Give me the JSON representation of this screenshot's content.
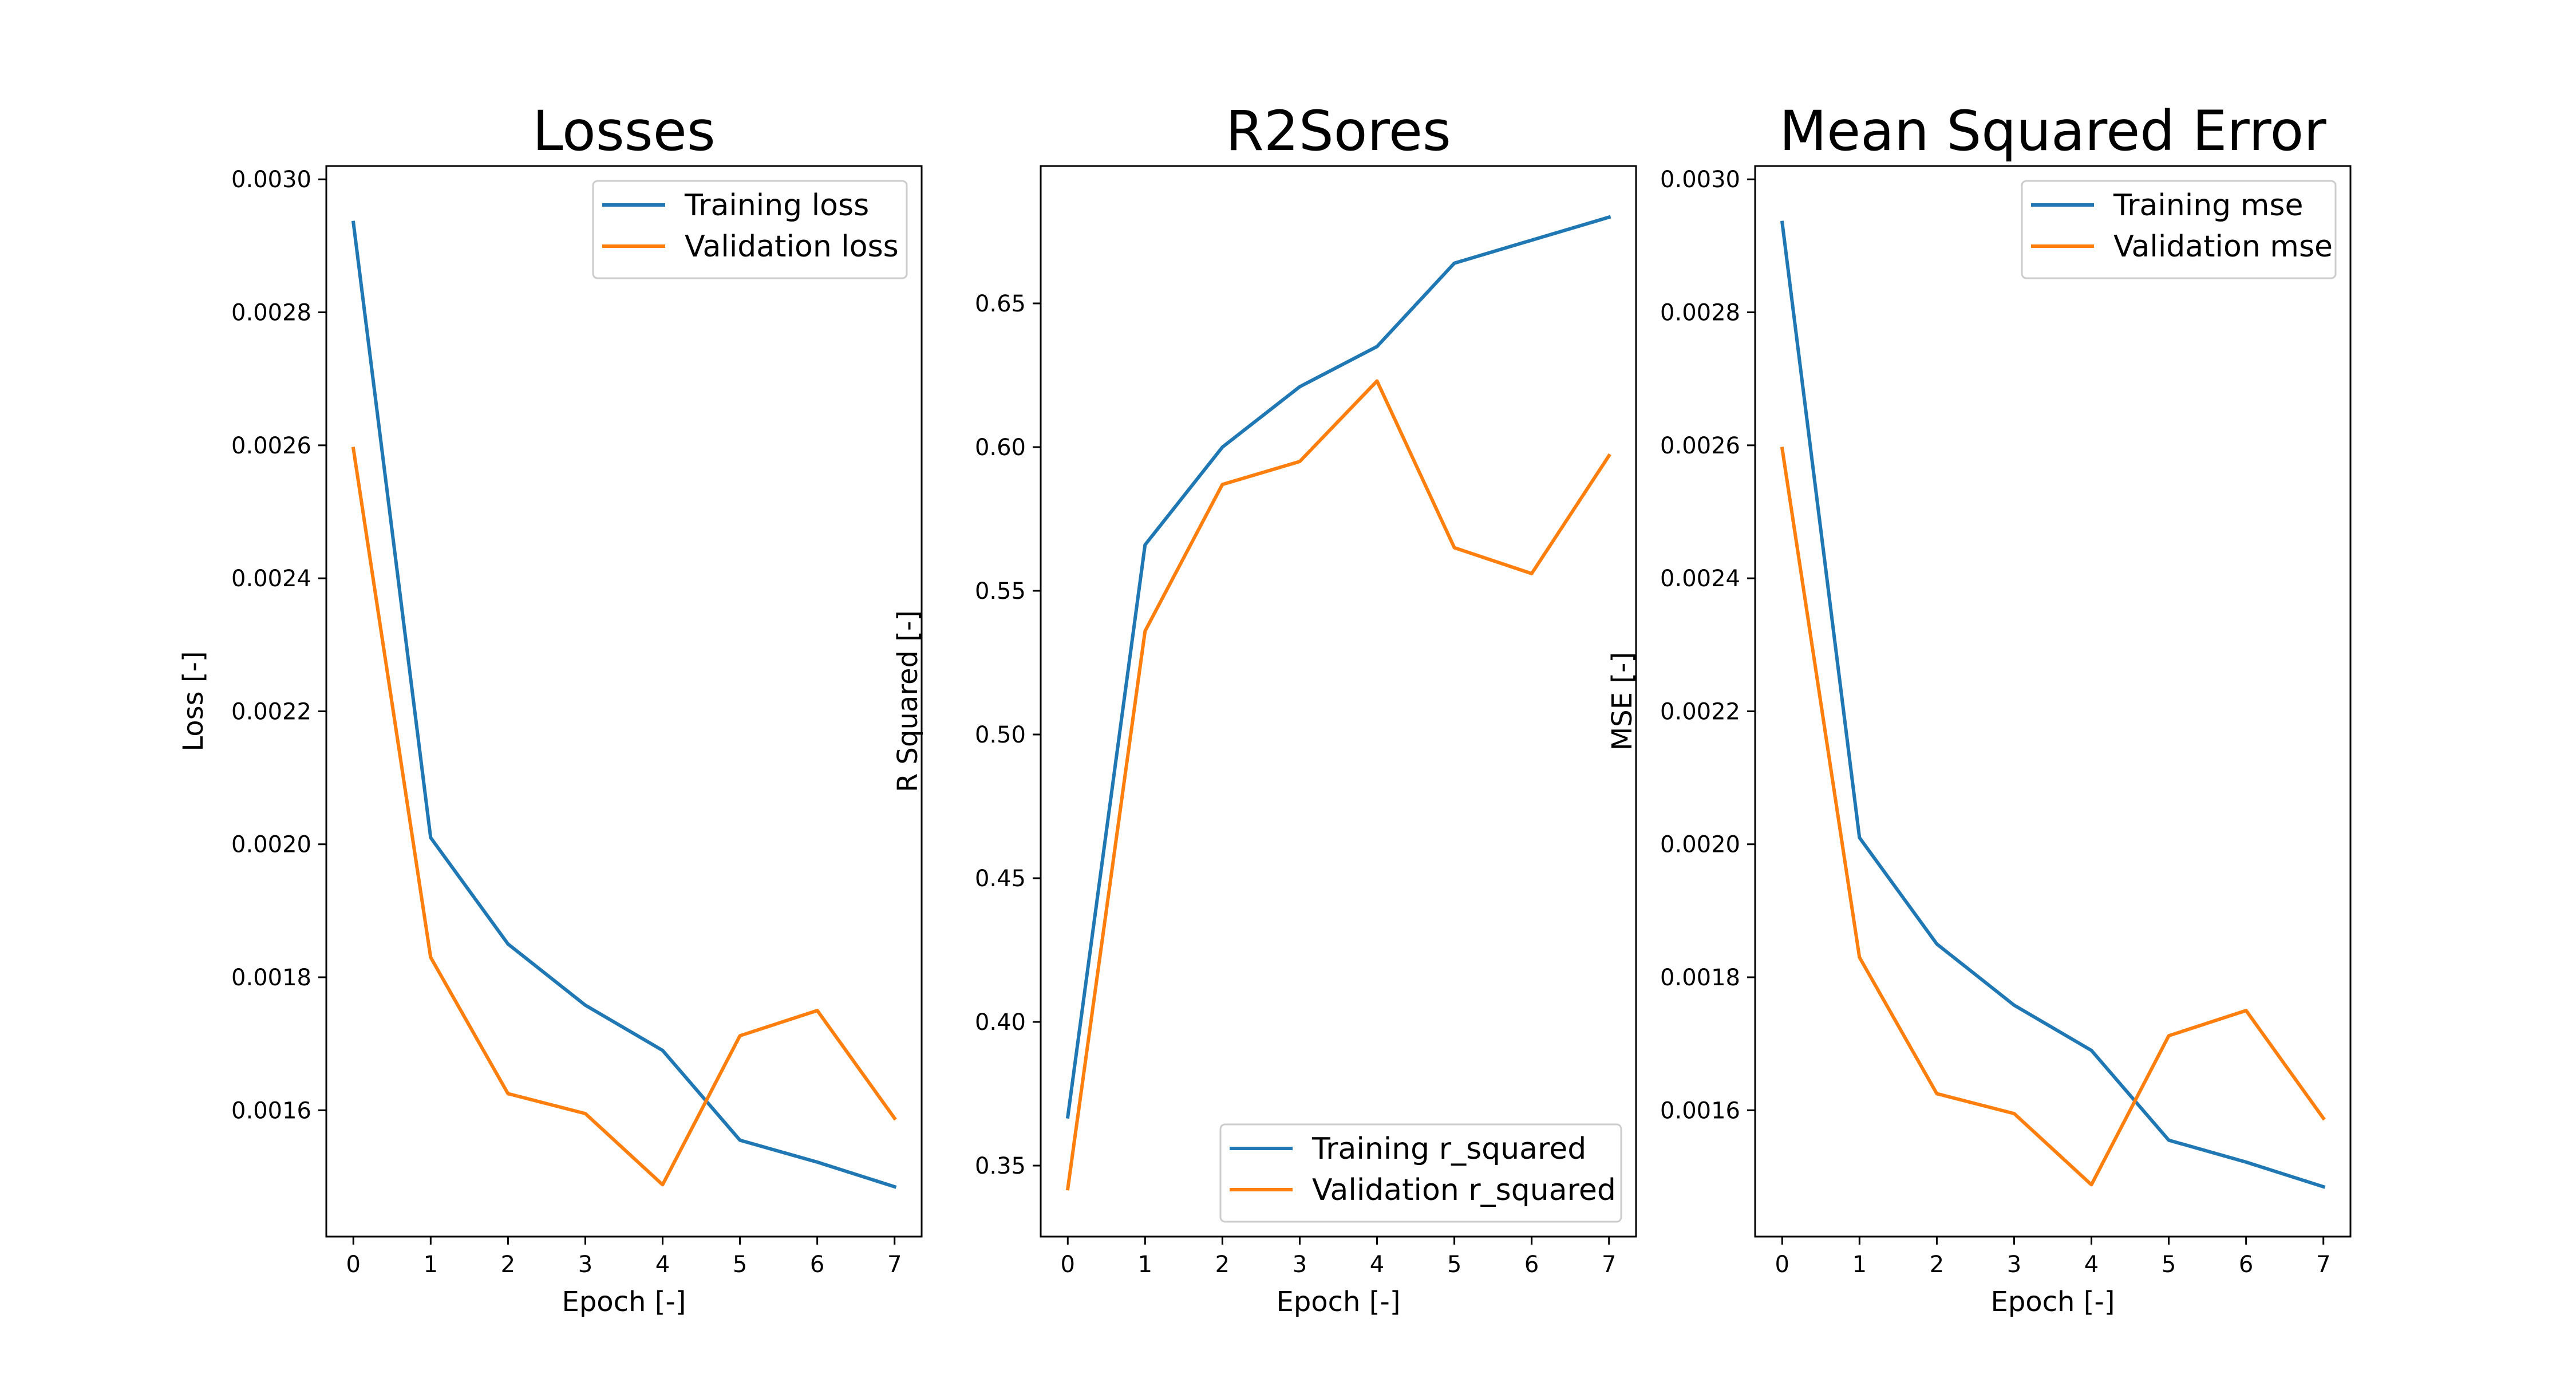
{
  "figure": {
    "background": "#ffffff",
    "colors": {
      "training": "#1f77b4",
      "validation": "#ff7f0e"
    }
  },
  "chart_data": [
    {
      "type": "line",
      "title": "Losses",
      "xlabel": "Epoch [-]",
      "ylabel": "Loss [-]",
      "x": [
        0,
        1,
        2,
        3,
        4,
        5,
        6,
        7
      ],
      "xlim": [
        -0.35,
        7.35
      ],
      "ylim": [
        0.00141,
        0.00302
      ],
      "xticks": [
        "0",
        "1",
        "2",
        "3",
        "4",
        "5",
        "6",
        "7"
      ],
      "yticks": [
        "0.0016",
        "0.0018",
        "0.0020",
        "0.0022",
        "0.0024",
        "0.0026",
        "0.0028",
        "0.0030"
      ],
      "grid": false,
      "legend_position": "upper right",
      "series": [
        {
          "name": "Training loss",
          "color": "#1f77b4",
          "values": [
            0.002935,
            0.00201,
            0.00185,
            0.001758,
            0.00169,
            0.001555,
            0.001522,
            0.001485
          ]
        },
        {
          "name": "Validation loss",
          "color": "#ff7f0e",
          "values": [
            0.002595,
            0.00183,
            0.001625,
            0.001595,
            0.001488,
            0.001712,
            0.00175,
            0.001588
          ]
        }
      ]
    },
    {
      "type": "line",
      "title": "R2Sores",
      "xlabel": "Epoch [-]",
      "ylabel": "R Squared [-]",
      "x": [
        0,
        1,
        2,
        3,
        4,
        5,
        6,
        7
      ],
      "xlim": [
        -0.35,
        7.35
      ],
      "ylim": [
        0.3253,
        0.6978
      ],
      "xticks": [
        "0",
        "1",
        "2",
        "3",
        "4",
        "5",
        "6",
        "7"
      ],
      "yticks": [
        "0.35",
        "0.40",
        "0.45",
        "0.50",
        "0.55",
        "0.60",
        "0.65"
      ],
      "grid": false,
      "legend_position": "lower right",
      "series": [
        {
          "name": "Training r_squared",
          "color": "#1f77b4",
          "values": [
            0.367,
            0.566,
            0.6,
            0.621,
            0.635,
            0.664,
            0.672,
            0.68
          ]
        },
        {
          "name": "Validation r_squared",
          "color": "#ff7f0e",
          "values": [
            0.342,
            0.536,
            0.587,
            0.595,
            0.623,
            0.565,
            0.556,
            0.597
          ]
        }
      ]
    },
    {
      "type": "line",
      "title": "Mean Squared Error",
      "xlabel": "Epoch [-]",
      "ylabel": "MSE [-]",
      "x": [
        0,
        1,
        2,
        3,
        4,
        5,
        6,
        7
      ],
      "xlim": [
        -0.35,
        7.35
      ],
      "ylim": [
        0.00141,
        0.00302
      ],
      "xticks": [
        "0",
        "1",
        "2",
        "3",
        "4",
        "5",
        "6",
        "7"
      ],
      "yticks": [
        "0.0016",
        "0.0018",
        "0.0020",
        "0.0022",
        "0.0024",
        "0.0026",
        "0.0028",
        "0.0030"
      ],
      "grid": false,
      "legend_position": "upper right",
      "series": [
        {
          "name": "Training mse",
          "color": "#1f77b4",
          "values": [
            0.002935,
            0.00201,
            0.00185,
            0.001758,
            0.00169,
            0.001555,
            0.001522,
            0.001485
          ]
        },
        {
          "name": "Validation mse",
          "color": "#ff7f0e",
          "values": [
            0.002595,
            0.00183,
            0.001625,
            0.001595,
            0.001488,
            0.001712,
            0.00175,
            0.001588
          ]
        }
      ]
    }
  ]
}
